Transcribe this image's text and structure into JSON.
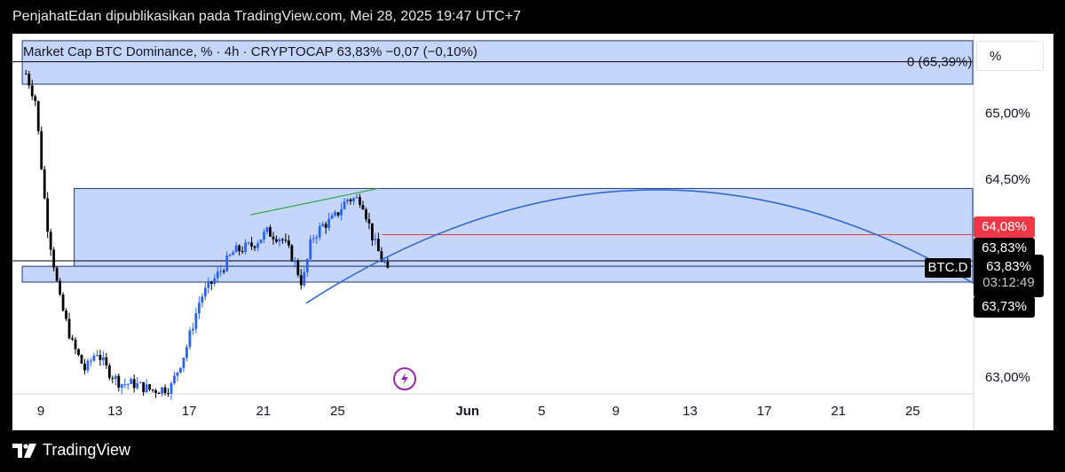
{
  "header": {
    "published_line": "PenjahatEdan dipublikasikan pada TradingView.com, Mei 28, 2025 19:47 UTC+7"
  },
  "legend": {
    "text": "Market Cap BTC Dominance, % · 4h · CRYPTOCAP  63,83%  −0,07 (−0,10%)"
  },
  "scale_button": {
    "label": "%"
  },
  "fib_label": "0 (65,39%)",
  "symbol_tag": "BTC.D",
  "price_labels": {
    "red": "64,08%",
    "current": "63,83%",
    "current_repeat": "63,83%",
    "countdown": "03:12:49",
    "low": "63,73%"
  },
  "footer": {
    "brand": "TradingView"
  },
  "colors": {
    "up": "#2962ff",
    "down": "#000000",
    "zone": "#c6d5fb",
    "arc": "#2f6bd4",
    "red": "#f23645",
    "green": "#3aa85a"
  },
  "icons": {
    "bolt": "lightning-bolt-icon",
    "logo": "tradingview-logo-icon"
  },
  "chart_data": {
    "type": "candlestick",
    "title": "Market Cap BTC Dominance, % · 4h · CRYPTOCAP",
    "timeframe": "4h",
    "last": 63.83,
    "change": -0.07,
    "change_pct": -0.1,
    "ylim": [
      62.85,
      65.55
    ],
    "y_ticks": [
      {
        "value": 65.0,
        "label": "65,00%"
      },
      {
        "value": 64.5,
        "label": "64,50%"
      },
      {
        "value": 63.0,
        "label": "63,00%"
      }
    ],
    "x_ticks": [
      {
        "day": 9,
        "label": "9"
      },
      {
        "day": 13,
        "label": "13"
      },
      {
        "day": 17,
        "label": "17"
      },
      {
        "day": 21,
        "label": "21"
      },
      {
        "day": 25,
        "label": "25"
      },
      {
        "day": 32,
        "label": "Jun"
      },
      {
        "day": 36,
        "label": "5"
      },
      {
        "day": 40,
        "label": "9"
      },
      {
        "day": 44,
        "label": "13"
      },
      {
        "day": 48,
        "label": "17"
      },
      {
        "day": 52,
        "label": "21"
      },
      {
        "day": 56,
        "label": "25"
      }
    ],
    "x_range_days": [
      8.0,
      61.0
    ],
    "anchor": [
      {
        "day": 8.2,
        "p": 65.3
      },
      {
        "day": 8.7,
        "p": 65.1
      },
      {
        "day": 9.3,
        "p": 64.2
      },
      {
        "day": 10.0,
        "p": 63.6
      },
      {
        "day": 10.7,
        "p": 63.25
      },
      {
        "day": 11.4,
        "p": 63.05
      },
      {
        "day": 12.0,
        "p": 63.2
      },
      {
        "day": 12.6,
        "p": 63.05
      },
      {
        "day": 13.3,
        "p": 62.95
      },
      {
        "day": 14.0,
        "p": 62.95
      },
      {
        "day": 15.0,
        "p": 62.9
      },
      {
        "day": 16.0,
        "p": 62.92
      },
      {
        "day": 16.8,
        "p": 63.2
      },
      {
        "day": 17.6,
        "p": 63.6
      },
      {
        "day": 18.4,
        "p": 63.75
      },
      {
        "day": 19.4,
        "p": 63.95
      },
      {
        "day": 20.4,
        "p": 64.0
      },
      {
        "day": 21.2,
        "p": 64.1
      },
      {
        "day": 22.0,
        "p": 64.05
      },
      {
        "day": 22.6,
        "p": 63.9
      },
      {
        "day": 23.1,
        "p": 63.7
      },
      {
        "day": 23.6,
        "p": 64.05
      },
      {
        "day": 24.2,
        "p": 64.15
      },
      {
        "day": 24.8,
        "p": 64.2
      },
      {
        "day": 25.5,
        "p": 64.35
      },
      {
        "day": 26.3,
        "p": 64.35
      },
      {
        "day": 26.9,
        "p": 64.05
      },
      {
        "day": 27.4,
        "p": 63.88
      },
      {
        "day": 27.8,
        "p": 63.83
      }
    ],
    "zones": [
      {
        "name": "upper-zone",
        "from_day": 8.0,
        "to_day": 61.0,
        "low": 65.22,
        "high": 65.55
      },
      {
        "name": "middle-zone",
        "from_day": 10.8,
        "to_day": 61.0,
        "low": 63.84,
        "high": 64.43
      },
      {
        "name": "lower-zone",
        "from_day": 8.0,
        "to_day": 61.0,
        "low": 63.72,
        "high": 63.84
      }
    ],
    "levels": [
      {
        "name": "fib-0",
        "value": 65.39
      },
      {
        "name": "red-line",
        "value": 64.08,
        "from_day": 27.4
      }
    ],
    "arc": {
      "start": [
        23.3,
        63.56
      ],
      "peak": [
        42.3,
        64.42
      ],
      "end": [
        61.0,
        63.56
      ]
    },
    "green_trend": {
      "from": [
        20.3,
        64.23
      ],
      "to": [
        27.2,
        64.43
      ]
    }
  }
}
